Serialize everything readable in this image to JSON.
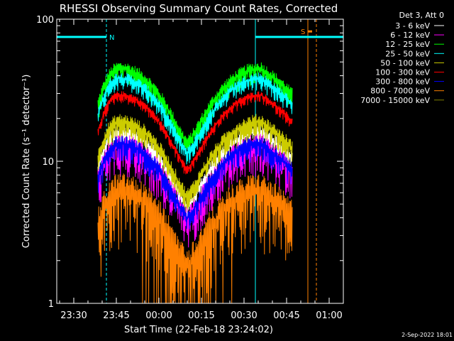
{
  "chart_data": {
    "type": "line",
    "title": "RHESSI Observing Summary Count Rates, Corrected",
    "xlabel": "Start Time (22-Feb-18 23:24:02)",
    "ylabel": "Corrected Count Rate (s⁻¹ detector⁻¹)",
    "y_scale": "log",
    "ylim": [
      1,
      100
    ],
    "y_ticks": [
      "1",
      "10",
      "100"
    ],
    "x_ticks": [
      "23:30",
      "23:45",
      "00:00",
      "00:15",
      "00:30",
      "00:45",
      "01:00"
    ],
    "x_tick_minutes": [
      6,
      21,
      36,
      51,
      66,
      81,
      96
    ],
    "xlim_minutes": [
      0,
      101
    ],
    "data_minutes_range": [
      14.5,
      83
    ],
    "legend_header": "Det 3, Att 0",
    "legend_position": "top-right",
    "series": [
      {
        "name": "3 - 6 keV",
        "color": "#ffffff",
        "base": 17,
        "min_sd": 0.18
      },
      {
        "name": "6 - 12 keV",
        "color": "#ff00ff",
        "base": 14,
        "min_sd": 0.3
      },
      {
        "name": "12 - 25 keV",
        "color": "#00ff00",
        "base": 47,
        "min_sd": 0.18
      },
      {
        "name": "25 - 50 keV",
        "color": "#00ffff",
        "base": 40,
        "min_sd": 0.15
      },
      {
        "name": "50 - 100 keV",
        "color": "#cccc00",
        "base": 20,
        "min_sd": 0.2
      },
      {
        "name": "100 - 300 keV",
        "color": "#ff0000",
        "base": 30,
        "min_sd": 0.1
      },
      {
        "name": "300 - 800 keV",
        "color": "#0000ff",
        "base": 14,
        "min_sd": 0.2
      },
      {
        "name": "800 - 7000 keV",
        "color": "#ff8000",
        "base": 7,
        "min_sd": 0.45
      },
      {
        "name": "7000 - 15000 keV",
        "color": "#808000",
        "base": 1,
        "min_sd": 0
      }
    ],
    "peaks_minutes": [
      22,
      72
    ],
    "trough_minutes": 46,
    "trough_level_fraction": 0.3,
    "annotations": [
      {
        "label": "N",
        "color": "#00ffff",
        "start_minute": 0,
        "end_minute": 17.5,
        "level": 75,
        "dashed_line_minute": 17.5
      },
      {
        "label": "S",
        "color": "#ff8000",
        "start_minute": 88.5,
        "end_minute": 90,
        "level": 82
      },
      {
        "label": "",
        "color": "#00ffff",
        "start_minute": 70,
        "end_minute": 101,
        "level": 75,
        "dashed_line_minute": 91.5
      }
    ],
    "vertical_lines": [
      {
        "minute": 0,
        "color": "#00ffff",
        "style": "solid"
      },
      {
        "minute": 70,
        "color": "#00ffff",
        "style": "solid"
      },
      {
        "minute": 88.5,
        "color": "#ff8000",
        "style": "solid"
      },
      {
        "minute": 91.5,
        "color": "#ff8000",
        "style": "dashed"
      },
      {
        "minute": 17.5,
        "color": "#00ffff",
        "style": "dashed"
      }
    ]
  },
  "footer": {
    "timestamp": "2-Sep-2022 18:01"
  }
}
